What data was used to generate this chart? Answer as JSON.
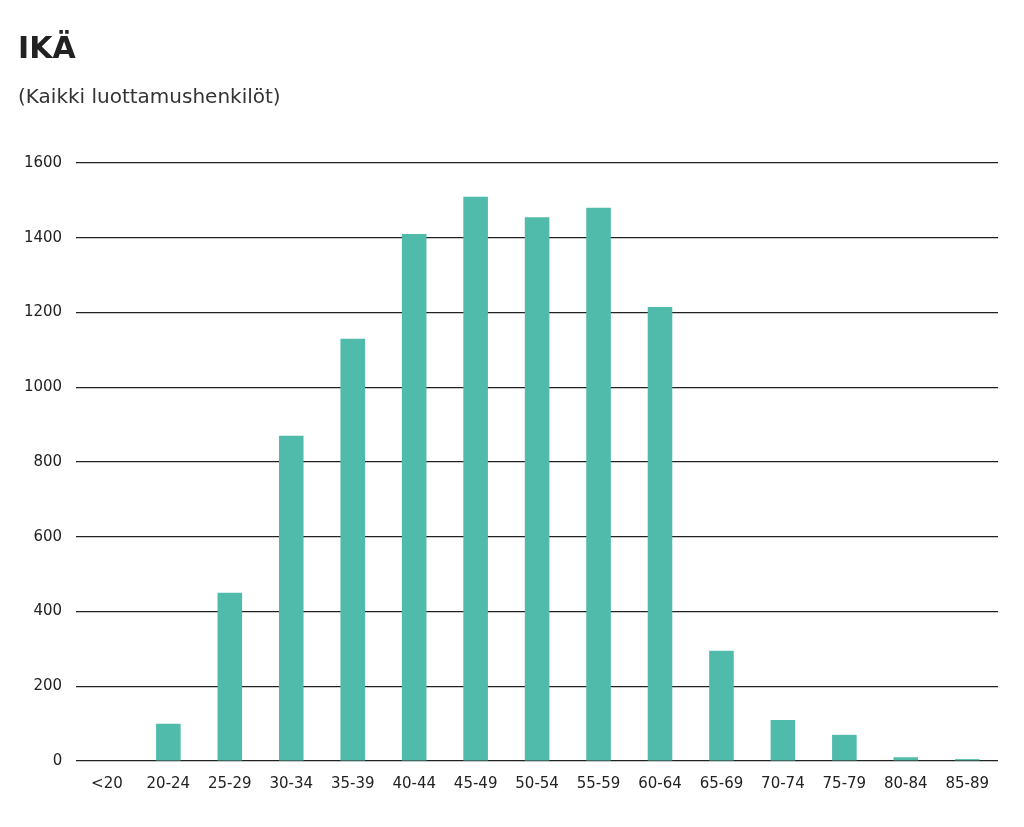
{
  "chart_data": {
    "type": "bar",
    "title": "IKÄ",
    "subtitle": "(Kaikki luottamushenkilöt)",
    "categories": [
      "<20",
      "20-24",
      "25-29",
      "30-34",
      "35-39",
      "40-44",
      "45-49",
      "50-54",
      "55-59",
      "60-64",
      "65-69",
      "70-74",
      "75-79",
      "80-84",
      "85-89"
    ],
    "values": [
      0,
      100,
      450,
      870,
      1130,
      1410,
      1510,
      1455,
      1480,
      1215,
      295,
      110,
      70,
      10,
      5
    ],
    "color": "#50bbab",
    "ylim": [
      0,
      1600
    ],
    "yticks": [
      0,
      200,
      400,
      600,
      800,
      1000,
      1200,
      1400,
      1600
    ],
    "grid": "y",
    "legend": false
  }
}
